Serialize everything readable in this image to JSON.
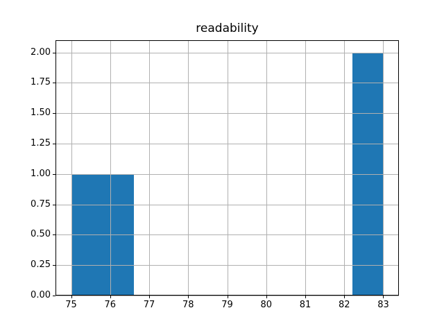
{
  "chart_data": {
    "type": "bar",
    "subtype": "histogram",
    "title": "readability",
    "xlabel": "",
    "ylabel": "",
    "bars": [
      {
        "x0": 75.0,
        "x1": 76.6,
        "height": 1.0
      },
      {
        "x0": 82.2,
        "x1": 83.0,
        "height": 2.0
      }
    ],
    "x_tick_labels": [
      "75",
      "76",
      "77",
      "78",
      "79",
      "80",
      "81",
      "82",
      "83"
    ],
    "x_tick_values": [
      75,
      76,
      77,
      78,
      79,
      80,
      81,
      82,
      83
    ],
    "y_tick_labels": [
      "0.00",
      "0.25",
      "0.50",
      "0.75",
      "1.00",
      "1.25",
      "1.50",
      "1.75",
      "2.00"
    ],
    "y_tick_values": [
      0,
      0.25,
      0.5,
      0.75,
      1.0,
      1.25,
      1.5,
      1.75,
      2.0
    ],
    "xlim": [
      74.6,
      83.4
    ],
    "ylim": [
      0,
      2.1
    ],
    "bar_color": "#1f77b4",
    "grid": true,
    "grid_over_bars": true,
    "grid_color": "#b0b0b0",
    "axis_color": "#000000",
    "background_color": "#ffffff",
    "legend": false
  }
}
